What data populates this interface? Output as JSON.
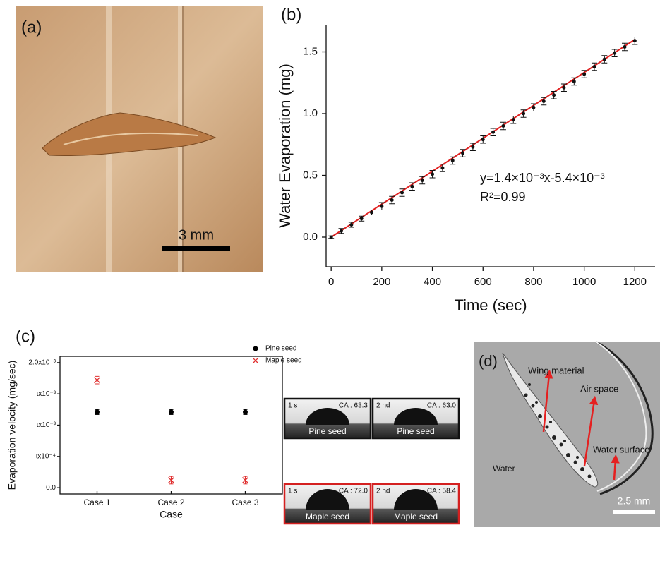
{
  "panels": {
    "a": "(a)",
    "b": "(b)",
    "c": "(c)",
    "d": "(d)"
  },
  "photo_a": {
    "scale": "3 mm"
  },
  "image_d": {
    "labels": [
      "Wing material",
      "Air space",
      "Water surface",
      "Water"
    ],
    "scale": "2.5 mm"
  },
  "thumbnails": [
    {
      "time": "1 s",
      "ca": "CA : 63.3",
      "label": "Pine seed"
    },
    {
      "time": "2 nd",
      "ca": "CA : 63.0",
      "label": "Pine seed"
    },
    {
      "time": "1 s",
      "ca": "CA : 72.0",
      "label": "Maple seed"
    },
    {
      "time": "2 nd",
      "ca": "CA : 58.4",
      "label": "Maple seed"
    }
  ],
  "chart_data": [
    {
      "type": "scatter",
      "x_label": "Time (sec)",
      "y_label": "Water Evaporation (mg)",
      "x": [
        0,
        40,
        80,
        120,
        160,
        200,
        240,
        280,
        320,
        360,
        400,
        440,
        480,
        520,
        560,
        600,
        640,
        680,
        720,
        760,
        800,
        840,
        880,
        920,
        960,
        1000,
        1040,
        1080,
        1120,
        1160,
        1200
      ],
      "series": [
        {
          "color": "#111111",
          "values": [
            0.0,
            0.05,
            0.1,
            0.15,
            0.2,
            0.25,
            0.3,
            0.36,
            0.41,
            0.46,
            0.51,
            0.56,
            0.62,
            0.68,
            0.73,
            0.79,
            0.85,
            0.9,
            0.95,
            1.0,
            1.05,
            1.1,
            1.15,
            1.21,
            1.26,
            1.32,
            1.38,
            1.44,
            1.49,
            1.54,
            1.59
          ],
          "errors": [
            0.01,
            0.02,
            0.02,
            0.02,
            0.02,
            0.03,
            0.03,
            0.03,
            0.03,
            0.03,
            0.03,
            0.03,
            0.03,
            0.03,
            0.03,
            0.03,
            0.03,
            0.03,
            0.03,
            0.03,
            0.03,
            0.03,
            0.03,
            0.03,
            0.03,
            0.03,
            0.03,
            0.03,
            0.03,
            0.03,
            0.03
          ]
        }
      ],
      "fit": {
        "x": [
          0,
          1200
        ],
        "values": [
          0,
          1.6
        ],
        "color": "#e02020"
      },
      "annotations": [
        "y=1.4×10⁻³x-5.4×10⁻³",
        "R²=0.99"
      ],
      "xlim": [
        -20,
        1280
      ],
      "ylim": [
        -0.24,
        1.72
      ],
      "xticks": [
        0,
        200,
        400,
        600,
        800,
        1000,
        1200
      ],
      "yticks": [
        {
          "value": 0,
          "label": "0.0"
        },
        {
          "value": 0.5,
          "label": "0.5"
        },
        {
          "value": 1,
          "label": "1.0"
        },
        {
          "value": 1.5,
          "label": "1.5"
        }
      ]
    },
    {
      "type": "scatter",
      "x_label": "Case",
      "y_label": "Evaporation velocity (mg/sec)",
      "categories": [
        "Case 1",
        "Case 2",
        "Case 3"
      ],
      "series": [
        {
          "name": "Pine seed",
          "color": "#000000",
          "marker": "circle",
          "values": [
            0.00121,
            0.00121,
            0.00121
          ],
          "errors": [
            4e-05,
            4e-05,
            4e-05
          ]
        },
        {
          "name": "Maple seed",
          "color": "#e03030",
          "marker": "x",
          "values": [
            0.00172,
            0.00012,
            0.00012
          ],
          "errors": [
            6e-05,
            6e-05,
            6e-05
          ]
        }
      ],
      "ylim": [
        -0.0001,
        0.0021
      ],
      "yticks": [
        {
          "value": 0,
          "label": "0.0"
        },
        {
          "value": 0.0005,
          "label": "ɩx10⁻⁴"
        },
        {
          "value": 0.001,
          "label": "ɩx10⁻³"
        },
        {
          "value": 0.0015,
          "label": "ɩx10⁻³"
        },
        {
          "value": 0.002,
          "label": "2.0x10⁻³"
        }
      ]
    }
  ]
}
